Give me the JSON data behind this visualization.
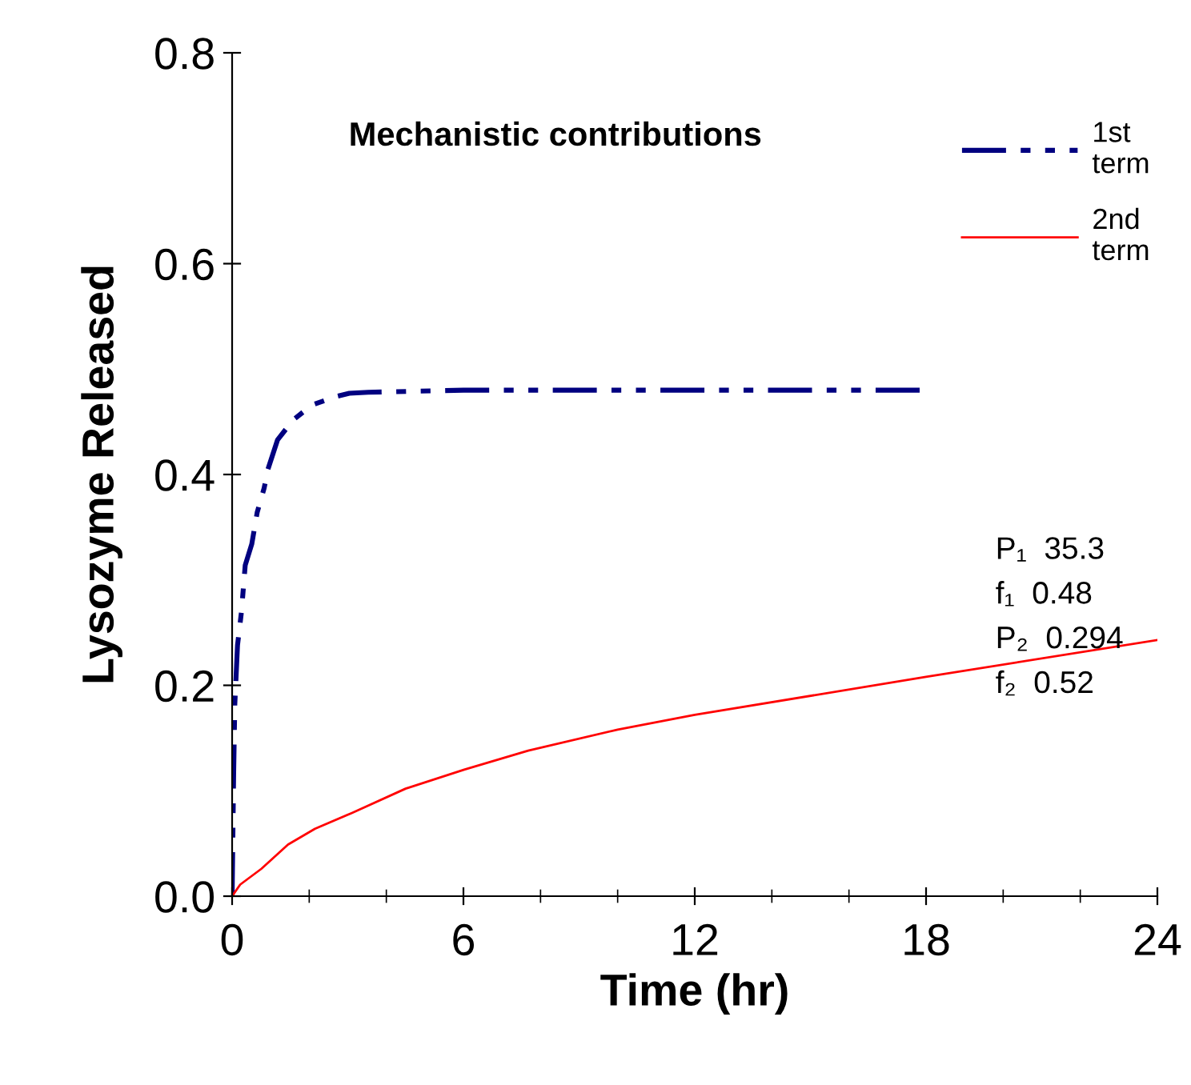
{
  "chart_data": {
    "type": "line",
    "xlabel": "Time (hr)",
    "ylabel": "Lysozyme Released",
    "xlim": [
      0,
      24
    ],
    "xticks": [
      0,
      6,
      12,
      18,
      24
    ],
    "ylim": [
      0,
      0.8
    ],
    "yticks": [
      {
        "value": 0,
        "label": "0.0"
      },
      0.2,
      0.4,
      0.6,
      0.8
    ],
    "grid": false,
    "legend": "top right",
    "marker": "none",
    "series": [
      {
        "name": "1st\nterm",
        "color": "#000080",
        "line_style": "dashed",
        "x": [
          0,
          0.04,
          0.07,
          0.14,
          0.24,
          0.34,
          0.51,
          0.65,
          0.83,
          0.93,
          1.18,
          1.59,
          2.08,
          2.7,
          3.04,
          3.53,
          6,
          12,
          18
        ],
        "values": [
          0,
          0.117,
          0.182,
          0.238,
          0.269,
          0.314,
          0.334,
          0.364,
          0.387,
          0.405,
          0.433,
          0.452,
          0.466,
          0.474,
          0.477,
          0.478,
          0.48,
          0.48,
          0.48
        ]
      },
      {
        "name": "2nd\nterm",
        "color": "#ff0000",
        "line_style": "solid",
        "x": [
          0,
          0.21,
          0.76,
          1.45,
          2.15,
          3.11,
          4.5,
          6.02,
          7.68,
          10,
          12,
          18,
          24
        ],
        "values": [
          0,
          0.011,
          0.026,
          0.049,
          0.064,
          0.079,
          0.102,
          0.12,
          0.138,
          0.158,
          0.172,
          0.208,
          0.243
        ]
      }
    ],
    "annotations": [
      "Mechanistic contributions",
      "P₁  35.3",
      "f₁  0.48",
      "P₂  0.294",
      "f₂  0.52"
    ]
  }
}
